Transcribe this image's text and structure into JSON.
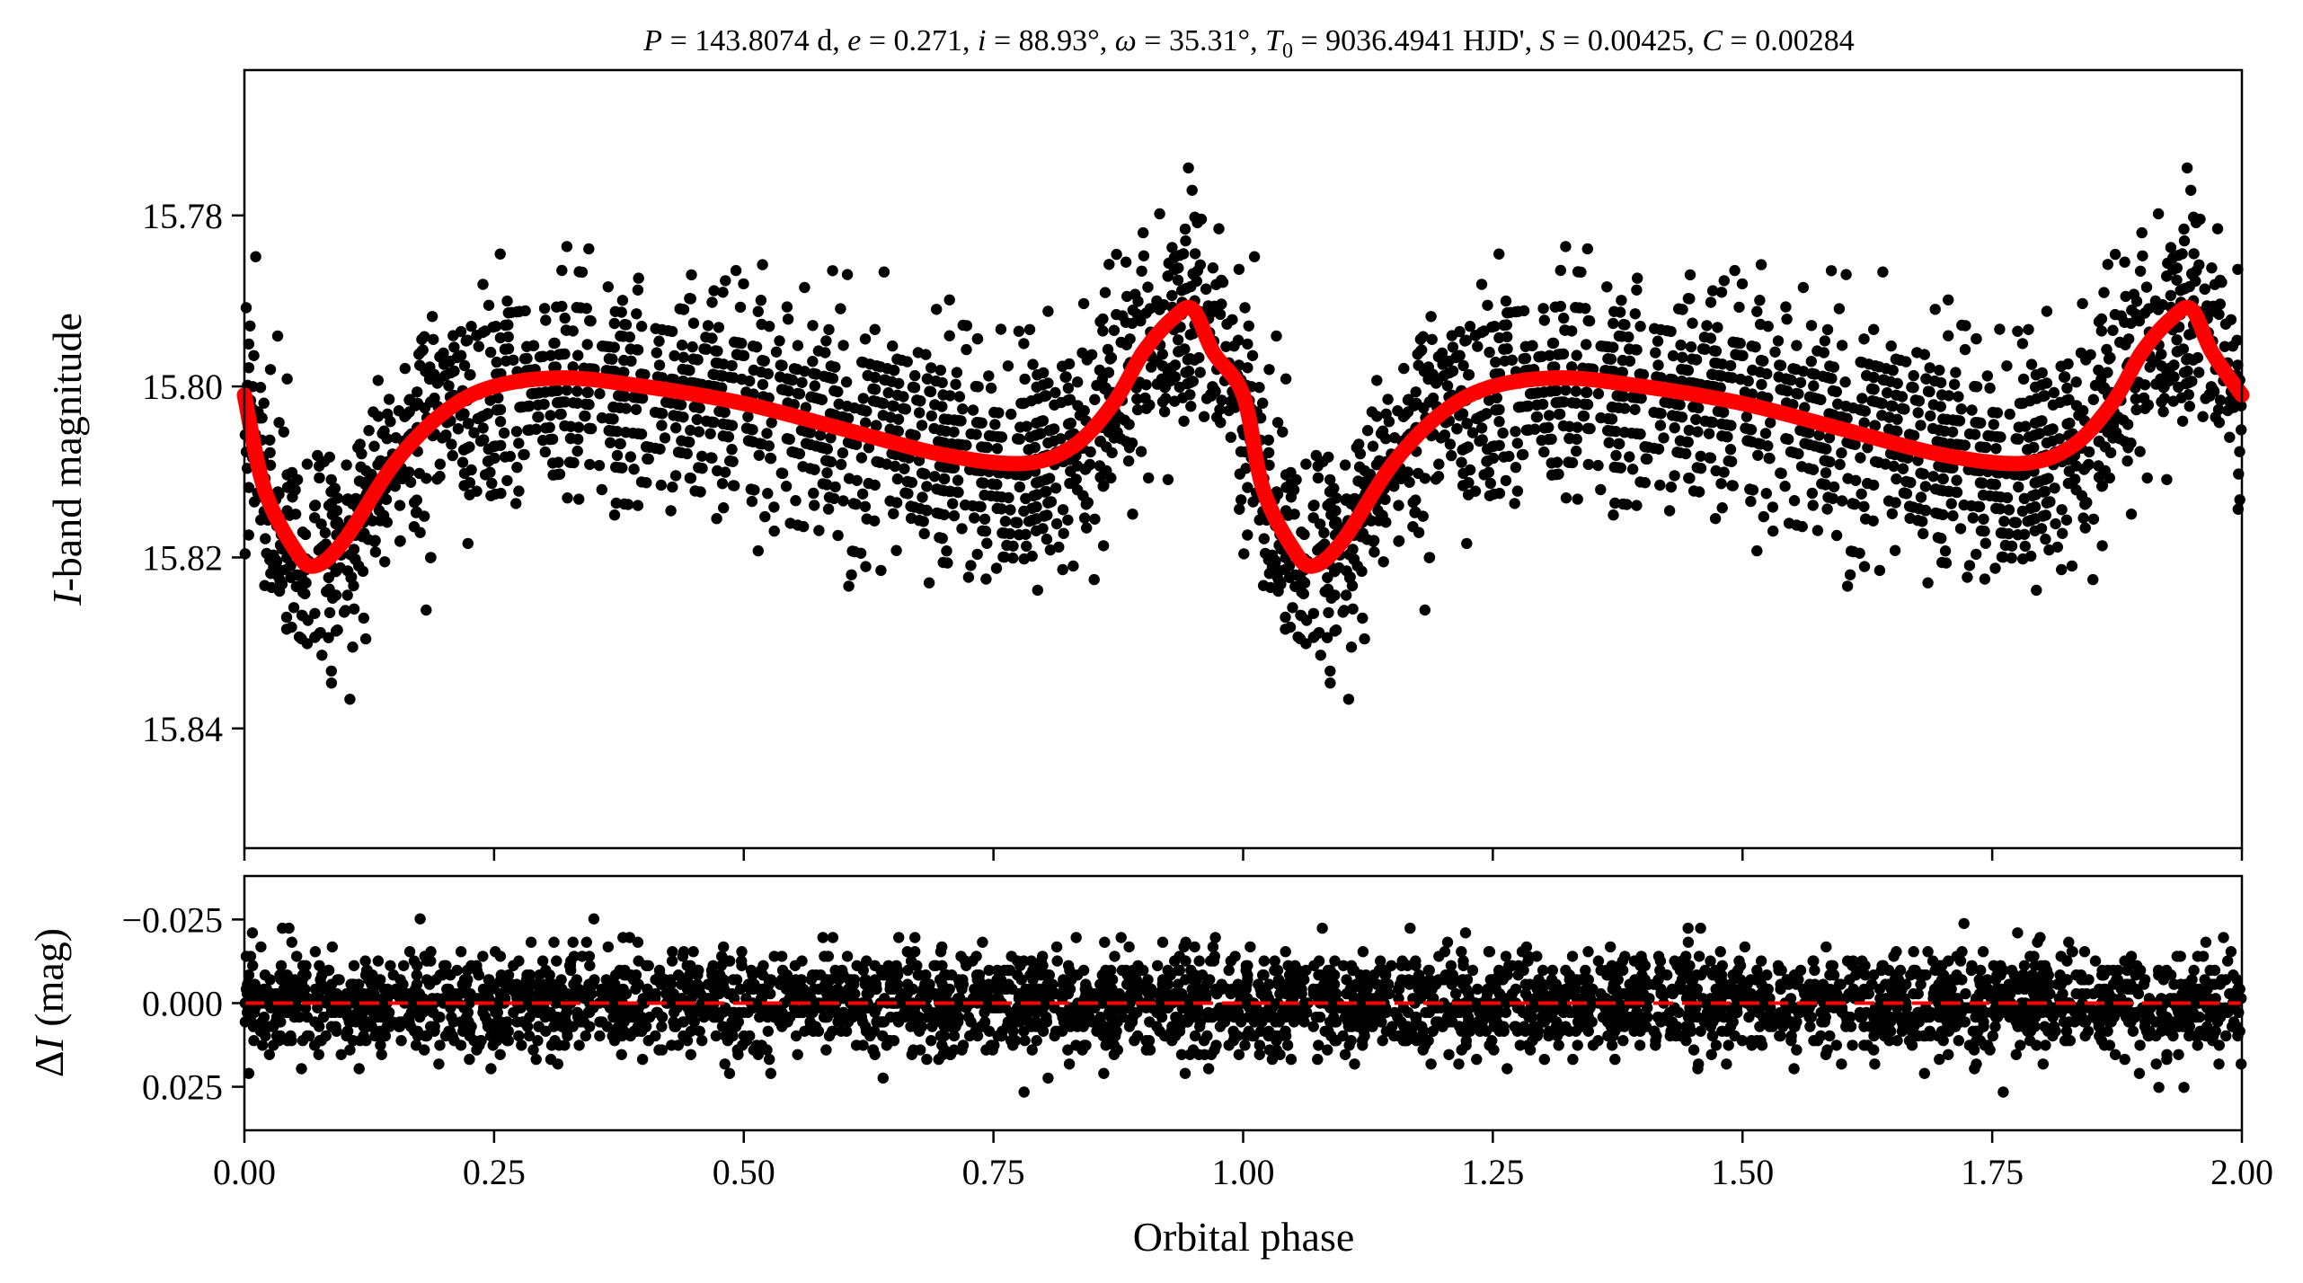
{
  "chart_data": [
    {
      "panel": "top",
      "type": "scatter",
      "title": "P = 143.8074 d, e = 0.271, i = 88.93°, ω = 35.31°, T0 = 9036.4941 HJD', S = 0.00425, C = 0.00284",
      "title_parts": {
        "P_sym": "P",
        "P_val": " = 143.8074 d, ",
        "e_sym": "e",
        "e_val": " = 0.271, ",
        "i_sym": "i",
        "i_val": " = 88.93°, ",
        "w_sym": "ω",
        "w_val": " = 35.31°, ",
        "T_sym": "T",
        "T_sub": "0",
        "T_val": " = 9036.4941 HJD', ",
        "S_sym": "S",
        "S_val": " = 0.00425, ",
        "C_sym": "C",
        "C_val": " = 0.00284"
      },
      "ylabel": "I-band magnitude",
      "ylabel_parts": {
        "italic": "I",
        "rest": "-band magnitude"
      },
      "ylim": [
        15.854,
        15.763
      ],
      "y_inverted": true,
      "yticks": [
        15.78,
        15.8,
        15.82,
        15.84
      ],
      "ytick_labels": [
        "15.78",
        "15.80",
        "15.82",
        "15.84"
      ],
      "xlim": [
        0.0,
        2.0
      ],
      "series": [
        {
          "name": "",
          "kind": "points",
          "color": "#000000",
          "note_points": "phase-folded photometry, repeated over two cycles",
          "baseline_model": [
            [
              0.0,
              15.801
            ],
            [
              0.02,
              15.812
            ],
            [
              0.05,
              15.819
            ],
            [
              0.07,
              15.821
            ],
            [
              0.1,
              15.818
            ],
            [
              0.15,
              15.809
            ],
            [
              0.2,
              15.803
            ],
            [
              0.25,
              15.8
            ],
            [
              0.32,
              15.799
            ],
            [
              0.4,
              15.8
            ],
            [
              0.5,
              15.802
            ],
            [
              0.6,
              15.805
            ],
            [
              0.7,
              15.808
            ],
            [
              0.78,
              15.809
            ],
            [
              0.83,
              15.807
            ],
            [
              0.87,
              15.802
            ],
            [
              0.9,
              15.796
            ],
            [
              0.93,
              15.792
            ],
            [
              0.95,
              15.791
            ],
            [
              0.97,
              15.796
            ],
            [
              1.0,
              15.801
            ]
          ],
          "scatter_sigma": 0.0065
        },
        {
          "name": "",
          "kind": "line",
          "color": "#ff0000",
          "x": [
            0.0,
            0.02,
            0.05,
            0.07,
            0.1,
            0.15,
            0.2,
            0.25,
            0.32,
            0.4,
            0.5,
            0.6,
            0.7,
            0.78,
            0.83,
            0.87,
            0.9,
            0.93,
            0.95,
            0.97,
            1.0,
            1.02,
            1.05,
            1.07,
            1.1,
            1.15,
            1.2,
            1.25,
            1.32,
            1.4,
            1.5,
            1.6,
            1.7,
            1.78,
            1.83,
            1.87,
            1.9,
            1.93,
            1.95,
            1.97,
            2.0
          ],
          "y": [
            15.801,
            15.812,
            15.819,
            15.821,
            15.818,
            15.809,
            15.803,
            15.8,
            15.799,
            15.8,
            15.802,
            15.805,
            15.808,
            15.809,
            15.807,
            15.802,
            15.796,
            15.792,
            15.791,
            15.796,
            15.801,
            15.812,
            15.819,
            15.821,
            15.818,
            15.809,
            15.803,
            15.8,
            15.799,
            15.8,
            15.802,
            15.805,
            15.808,
            15.809,
            15.807,
            15.802,
            15.796,
            15.792,
            15.791,
            15.796,
            15.801
          ]
        }
      ]
    },
    {
      "panel": "bottom",
      "type": "scatter",
      "xlabel": "Orbital phase",
      "ylabel": "ΔI (mag)",
      "ylabel_parts": {
        "delta": "Δ",
        "italic": "I",
        "rest": " (mag)"
      },
      "xlim": [
        0.0,
        2.0
      ],
      "xticks": [
        0.0,
        0.25,
        0.5,
        0.75,
        1.0,
        1.25,
        1.5,
        1.75,
        2.0
      ],
      "xtick_labels": [
        "0.00",
        "0.25",
        "0.50",
        "0.75",
        "1.00",
        "1.25",
        "1.50",
        "1.75",
        "2.00"
      ],
      "ylim": [
        0.038,
        -0.038
      ],
      "y_inverted": true,
      "yticks": [
        -0.025,
        0.0,
        0.025
      ],
      "ytick_labels": [
        "−0.025",
        "0.000",
        "0.025"
      ],
      "series": [
        {
          "name": "",
          "kind": "points",
          "color": "#000000",
          "scatter_sigma": 0.0075,
          "note": "residuals scattered around zero"
        },
        {
          "name": "",
          "kind": "dashed-line",
          "color": "#ff0000",
          "y_value": 0.0
        }
      ]
    }
  ]
}
